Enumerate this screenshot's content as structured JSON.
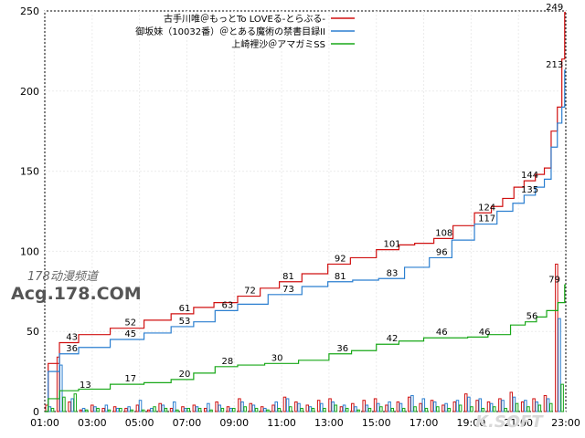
{
  "chart_data": {
    "type": "line",
    "ylim": [
      0,
      250
    ],
    "yticks": [
      "0",
      "50",
      "100",
      "150",
      "200",
      "250"
    ],
    "xticks": [
      "01:00",
      "03:00",
      "05:00",
      "07:00",
      "09:00",
      "11:00",
      "13:00",
      "15:00",
      "17:00",
      "19:00",
      "21:00",
      "23:00"
    ],
    "grid": true,
    "legend_position": "top-right",
    "series": [
      {
        "name": "古手川唯＠もっとTo LOVEる-とらぶる-",
        "color": "#d01010",
        "points": [
          [
            0,
            0
          ],
          [
            0.3,
            30
          ],
          [
            1,
            43
          ],
          [
            2,
            48
          ],
          [
            3.8,
            52
          ],
          [
            5,
            57
          ],
          [
            6.2,
            61
          ],
          [
            7,
            65
          ],
          [
            8,
            68
          ],
          [
            9.1,
            72
          ],
          [
            10,
            77
          ],
          [
            10.8,
            81
          ],
          [
            12,
            86
          ],
          [
            13.1,
            92
          ],
          [
            14,
            96
          ],
          [
            15.4,
            101
          ],
          [
            16,
            104
          ],
          [
            16.8,
            105
          ],
          [
            17.7,
            108
          ],
          [
            18.5,
            116
          ],
          [
            19.6,
            124
          ],
          [
            20,
            128
          ],
          [
            20.6,
            133
          ],
          [
            21,
            140
          ],
          [
            21.5,
            144
          ],
          [
            22,
            148
          ],
          [
            22.3,
            152
          ],
          [
            22.6,
            175
          ],
          [
            22.85,
            190
          ],
          [
            23,
            220
          ],
          [
            23.1,
            249
          ]
        ],
        "labels": [
          [
            1.2,
            43,
            "43"
          ],
          [
            3.8,
            52,
            "52"
          ],
          [
            6.2,
            61,
            "61"
          ],
          [
            9.1,
            72,
            "72"
          ],
          [
            10.8,
            81,
            "81"
          ],
          [
            13.1,
            92,
            "92"
          ],
          [
            15.4,
            101,
            "101"
          ],
          [
            17.7,
            108,
            "108"
          ],
          [
            19.6,
            124,
            "124"
          ],
          [
            21.5,
            144,
            "144"
          ],
          [
            22.6,
            249,
            "249"
          ]
        ]
      },
      {
        "name": "御坂妹（10032番）＠とある魔術の禁書目録II",
        "color": "#2b7fd0",
        "points": [
          [
            0,
            0
          ],
          [
            0.3,
            25
          ],
          [
            1,
            36
          ],
          [
            2,
            40
          ],
          [
            3.8,
            45
          ],
          [
            5,
            49
          ],
          [
            6.2,
            53
          ],
          [
            7,
            56
          ],
          [
            8.1,
            63
          ],
          [
            9,
            67
          ],
          [
            10.8,
            73
          ],
          [
            12,
            78
          ],
          [
            13.1,
            81
          ],
          [
            14.2,
            82
          ],
          [
            15.4,
            83
          ],
          [
            16.5,
            90
          ],
          [
            17.6,
            96
          ],
          [
            18.5,
            107
          ],
          [
            19.6,
            117
          ],
          [
            20.5,
            125
          ],
          [
            21,
            130
          ],
          [
            21.5,
            135
          ],
          [
            22,
            140
          ],
          [
            22.3,
            145
          ],
          [
            22.6,
            165
          ],
          [
            22.85,
            180
          ],
          [
            23,
            190
          ],
          [
            23.1,
            213
          ]
        ],
        "labels": [
          [
            1.2,
            36,
            "36"
          ],
          [
            3.8,
            45,
            "45"
          ],
          [
            6.2,
            53,
            "53"
          ],
          [
            8.1,
            63,
            "63"
          ],
          [
            10.8,
            73,
            "73"
          ],
          [
            13.1,
            81,
            "81"
          ],
          [
            15.4,
            83,
            "83"
          ],
          [
            17.6,
            96,
            "96"
          ],
          [
            19.6,
            117,
            "117"
          ],
          [
            21.5,
            135,
            "135"
          ],
          [
            22.6,
            213,
            "213"
          ]
        ]
      },
      {
        "name": "上崎裡沙＠アマガミSS",
        "color": "#18a818",
        "points": [
          [
            0,
            0
          ],
          [
            0.3,
            8
          ],
          [
            1,
            13
          ],
          [
            2,
            14
          ],
          [
            3.8,
            17
          ],
          [
            5,
            18
          ],
          [
            6.2,
            20
          ],
          [
            7,
            24
          ],
          [
            8.1,
            28
          ],
          [
            9,
            29
          ],
          [
            10.5,
            30
          ],
          [
            12,
            32
          ],
          [
            13.2,
            36
          ],
          [
            14,
            38
          ],
          [
            15.4,
            42
          ],
          [
            16,
            44
          ],
          [
            17.6,
            46
          ],
          [
            18.5,
            46
          ],
          [
            19,
            46.5
          ],
          [
            20.3,
            48
          ],
          [
            21,
            54
          ],
          [
            21.6,
            56
          ],
          [
            22,
            59
          ],
          [
            22.5,
            63
          ],
          [
            23,
            68
          ],
          [
            23.1,
            79
          ]
        ],
        "labels": [
          [
            1.8,
            13,
            "13"
          ],
          [
            3.8,
            17,
            "17"
          ],
          [
            6.2,
            20,
            "20"
          ],
          [
            8.1,
            28,
            "28"
          ],
          [
            10.3,
            30,
            "30"
          ],
          [
            13.2,
            36,
            "36"
          ],
          [
            15.4,
            42,
            "42"
          ],
          [
            17.6,
            46,
            "46"
          ],
          [
            19.5,
            46,
            "46"
          ],
          [
            21.6,
            56,
            "56"
          ],
          [
            22.6,
            79,
            "79"
          ]
        ]
      }
    ],
    "bars": [
      [
        4,
        3,
        2
      ],
      [
        34,
        29,
        9
      ],
      [
        6,
        8,
        11
      ],
      [
        1,
        2,
        1
      ],
      [
        4,
        3,
        2
      ],
      [
        2,
        4,
        1
      ],
      [
        3,
        2,
        2
      ],
      [
        2,
        3,
        1
      ],
      [
        4,
        7,
        1
      ],
      [
        1,
        2,
        3
      ],
      [
        5,
        4,
        2
      ],
      [
        2,
        6,
        1
      ],
      [
        3,
        2,
        2
      ],
      [
        4,
        3,
        2
      ],
      [
        2,
        5,
        1
      ],
      [
        6,
        4,
        2
      ],
      [
        3,
        2,
        2
      ],
      [
        8,
        6,
        3
      ],
      [
        5,
        4,
        2
      ],
      [
        3,
        2,
        1
      ],
      [
        4,
        6,
        2
      ],
      [
        9,
        8,
        3
      ],
      [
        6,
        5,
        2
      ],
      [
        4,
        3,
        2
      ],
      [
        7,
        5,
        2
      ],
      [
        8,
        6,
        4
      ],
      [
        3,
        4,
        2
      ],
      [
        5,
        3,
        1
      ],
      [
        7,
        4,
        2
      ],
      [
        8,
        5,
        3
      ],
      [
        4,
        6,
        2
      ],
      [
        6,
        5,
        2
      ],
      [
        9,
        10,
        3
      ],
      [
        5,
        8,
        2
      ],
      [
        7,
        6,
        3
      ],
      [
        4,
        5,
        2
      ],
      [
        6,
        7,
        4
      ],
      [
        11,
        9,
        3
      ],
      [
        7,
        8,
        2
      ],
      [
        6,
        5,
        3
      ],
      [
        8,
        7,
        2
      ],
      [
        12,
        9,
        5
      ],
      [
        6,
        7,
        3
      ],
      [
        8,
        6,
        4
      ],
      [
        10,
        8,
        5
      ],
      [
        92,
        58,
        17
      ]
    ]
  },
  "watermark": {
    "line1": "178动漫频道",
    "line2": "Acg.178.COM",
    "line3": "K.SOFT"
  }
}
